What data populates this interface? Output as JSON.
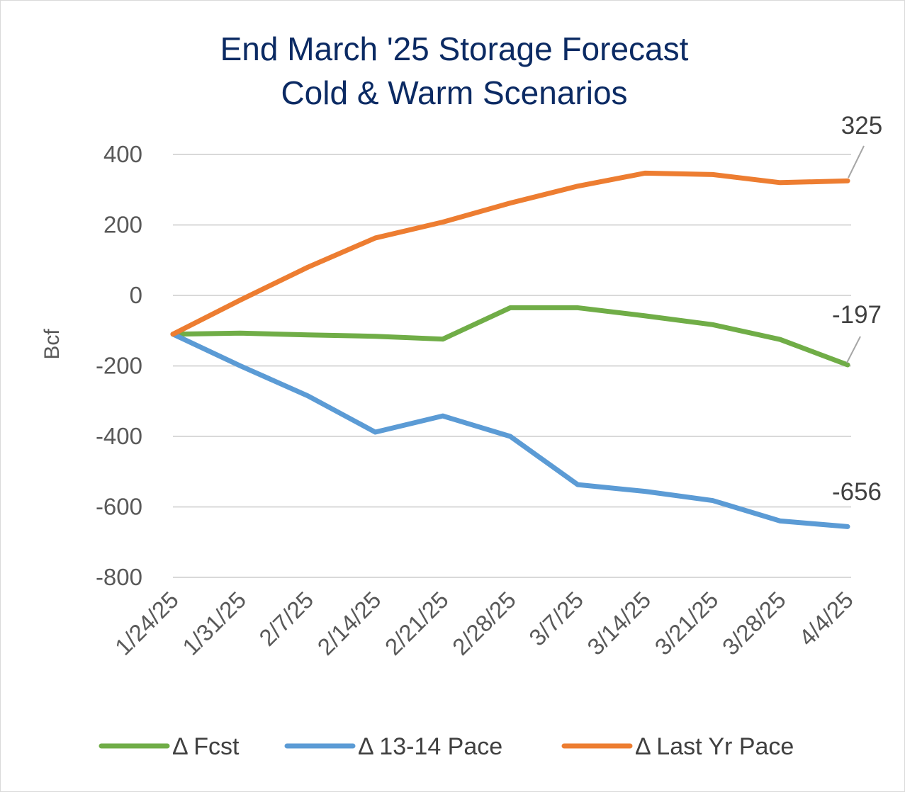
{
  "chart_data": {
    "type": "line",
    "title": "End March '25 Storage Forecast",
    "subtitle": "Cold & Warm Scenarios",
    "ylabel": "Bcf",
    "xlabel": "",
    "ylim": [
      -800,
      400
    ],
    "yticks": [
      400,
      200,
      0,
      -200,
      -400,
      -600,
      -800
    ],
    "grid": "horizontal",
    "legend_position": "bottom",
    "categories": [
      "1/24/25",
      "1/31/25",
      "2/7/25",
      "2/14/25",
      "2/21/25",
      "2/28/25",
      "3/7/25",
      "3/14/25",
      "3/21/25",
      "3/28/25",
      "4/4/25"
    ],
    "series": [
      {
        "name": "Δ Fcst",
        "color": "#70ad47",
        "values": [
          -110,
          -107,
          -112,
          -116,
          -124,
          -35,
          -35,
          -58,
          -83,
          -125,
          -197
        ],
        "end_label": "-197"
      },
      {
        "name": "Δ 13-14 Pace",
        "color": "#5b9bd5",
        "values": [
          -110,
          -200,
          -285,
          -388,
          -342,
          -400,
          -537,
          -556,
          -582,
          -640,
          -656
        ],
        "end_label": "-656"
      },
      {
        "name": "Δ Last Yr Pace",
        "color": "#ed7d31",
        "values": [
          -110,
          -13,
          80,
          163,
          208,
          262,
          310,
          347,
          343,
          320,
          325
        ],
        "end_label": "325"
      }
    ]
  }
}
